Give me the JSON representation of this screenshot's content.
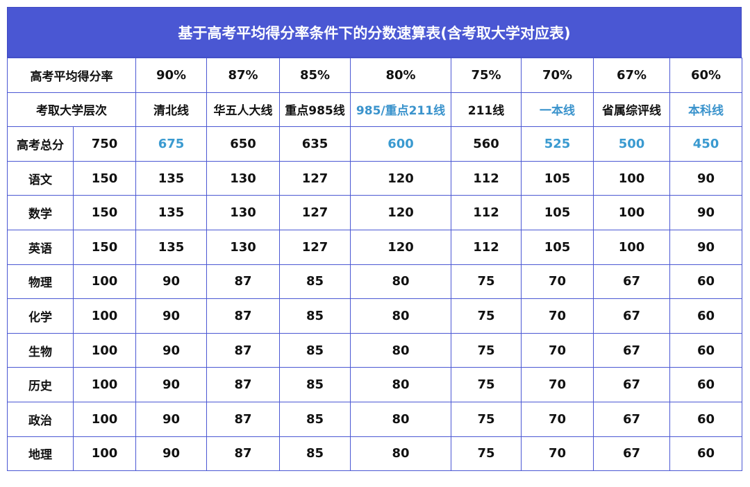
{
  "title": "基于高考平均得分率条件下的分数速算表(含考取大学对应表)",
  "header_rows": [
    {
      "label": "高考平均得分率",
      "cells": [
        "90%",
        "87%",
        "85%",
        "80%",
        "75%",
        "70%",
        "67%",
        "60%"
      ]
    },
    {
      "label": "考取大学层次",
      "cells": [
        "清北线",
        "华五人大线",
        "重点985线",
        "985/重点211线",
        "211线",
        "一本线",
        "省属综评线",
        "本科线"
      ]
    }
  ],
  "rows": [
    {
      "subject": "高考总分",
      "full": "750",
      "values": [
        "675",
        "650",
        "635",
        "600",
        "560",
        "525",
        "500",
        "450"
      ]
    },
    {
      "subject": "语文",
      "full": "150",
      "values": [
        "135",
        "130",
        "127",
        "120",
        "112",
        "105",
        "100",
        "90"
      ]
    },
    {
      "subject": "数学",
      "full": "150",
      "values": [
        "135",
        "130",
        "127",
        "120",
        "112",
        "105",
        "100",
        "90"
      ]
    },
    {
      "subject": "英语",
      "full": "150",
      "values": [
        "135",
        "130",
        "127",
        "120",
        "112",
        "105",
        "100",
        "90"
      ]
    },
    {
      "subject": "物理",
      "full": "100",
      "values": [
        "90",
        "87",
        "85",
        "80",
        "75",
        "70",
        "67",
        "60"
      ]
    },
    {
      "subject": "化学",
      "full": "100",
      "values": [
        "90",
        "87",
        "85",
        "80",
        "75",
        "70",
        "67",
        "60"
      ]
    },
    {
      "subject": "生物",
      "full": "100",
      "values": [
        "90",
        "87",
        "85",
        "80",
        "75",
        "70",
        "67",
        "60"
      ]
    },
    {
      "subject": "历史",
      "full": "100",
      "values": [
        "90",
        "87",
        "85",
        "80",
        "75",
        "70",
        "67",
        "60"
      ]
    },
    {
      "subject": "政治",
      "full": "100",
      "values": [
        "90",
        "87",
        "85",
        "80",
        "75",
        "70",
        "67",
        "60"
      ]
    },
    {
      "subject": "地理",
      "full": "100",
      "values": [
        "90",
        "87",
        "85",
        "80",
        "75",
        "70",
        "67",
        "60"
      ]
    }
  ],
  "colors": {
    "header_bg": "#4a57d3",
    "border": "#4a57d3",
    "highlight_text": "#3a9ad0",
    "text": "#111111"
  }
}
